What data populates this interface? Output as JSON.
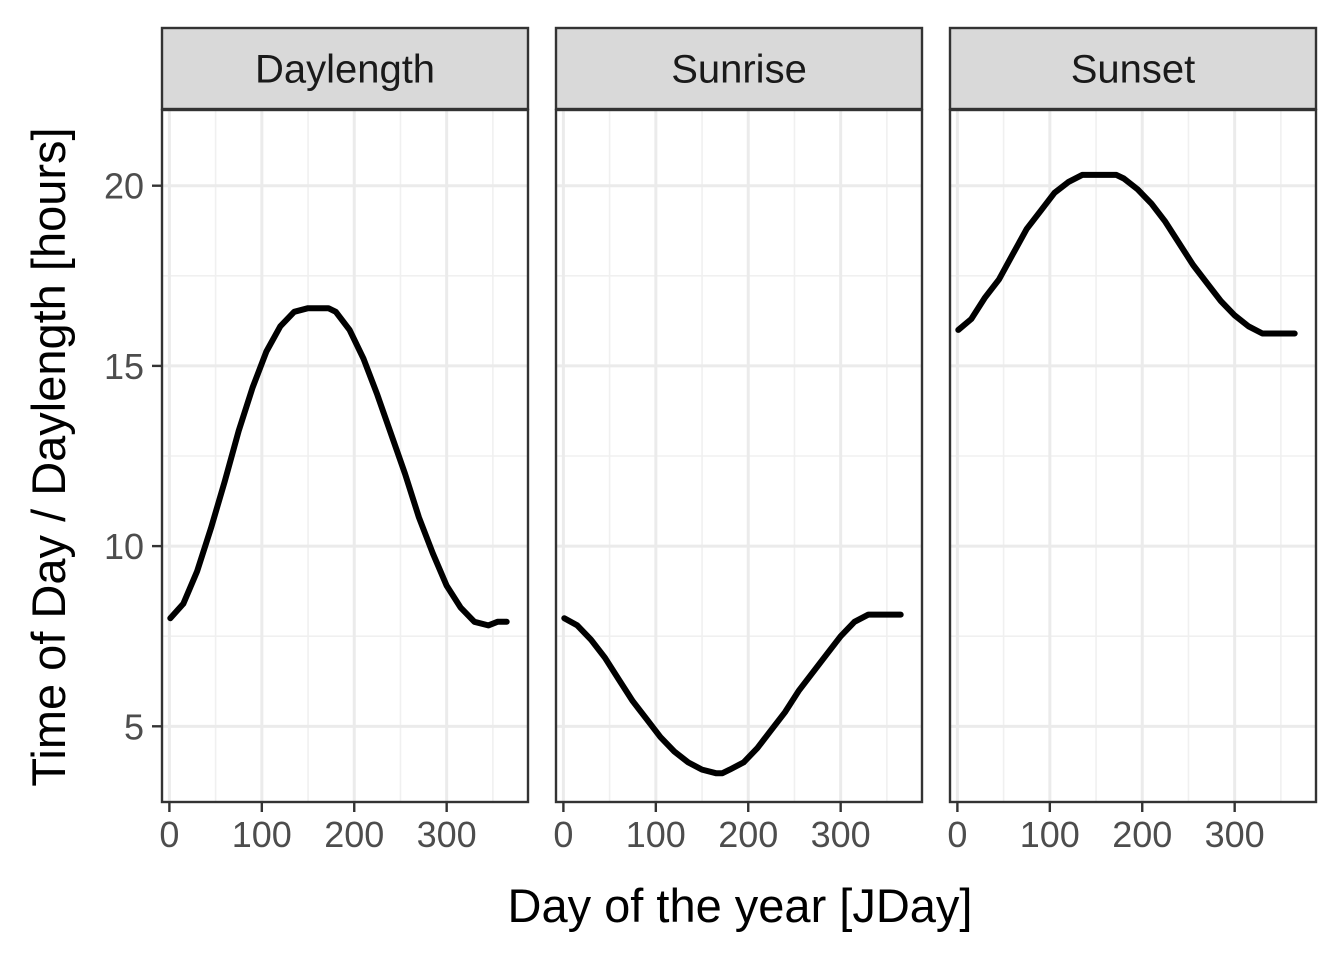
{
  "chart_data": {
    "type": "line",
    "xlabel": "Day of the year [JDay]",
    "ylabel": "Time of Day / Daylength [hours]",
    "xlim": [
      -8,
      388
    ],
    "ylim": [
      2.9,
      22.1
    ],
    "x_ticks": [
      0,
      100,
      200,
      300
    ],
    "y_ticks": [
      5,
      10,
      15,
      20
    ],
    "grid": true,
    "line_color": "#000000",
    "facets": [
      {
        "label": "Daylength",
        "x": [
          1,
          15,
          30,
          45,
          60,
          75,
          90,
          105,
          120,
          135,
          150,
          165,
          172,
          180,
          195,
          210,
          225,
          240,
          255,
          270,
          285,
          300,
          315,
          330,
          345,
          355,
          365
        ],
        "y": [
          8.0,
          8.4,
          9.3,
          10.5,
          11.8,
          13.2,
          14.4,
          15.4,
          16.1,
          16.5,
          16.6,
          16.6,
          16.6,
          16.5,
          16.0,
          15.2,
          14.2,
          13.1,
          12.0,
          10.8,
          9.8,
          8.9,
          8.3,
          7.9,
          7.8,
          7.9,
          7.9
        ]
      },
      {
        "label": "Sunrise",
        "x": [
          1,
          15,
          30,
          45,
          60,
          75,
          90,
          105,
          120,
          135,
          150,
          165,
          172,
          180,
          195,
          210,
          225,
          240,
          255,
          270,
          285,
          300,
          315,
          330,
          345,
          355,
          365
        ],
        "y": [
          8.0,
          7.8,
          7.4,
          6.9,
          6.3,
          5.7,
          5.2,
          4.7,
          4.3,
          4.0,
          3.8,
          3.7,
          3.7,
          3.8,
          4.0,
          4.4,
          4.9,
          5.4,
          6.0,
          6.5,
          7.0,
          7.5,
          7.9,
          8.1,
          8.1,
          8.1,
          8.1
        ]
      },
      {
        "label": "Sunset",
        "x": [
          1,
          15,
          30,
          45,
          60,
          75,
          90,
          105,
          120,
          135,
          150,
          165,
          172,
          180,
          195,
          210,
          225,
          240,
          255,
          270,
          285,
          300,
          315,
          330,
          345,
          355,
          365
        ],
        "y": [
          16.0,
          16.3,
          16.9,
          17.4,
          18.1,
          18.8,
          19.3,
          19.8,
          20.1,
          20.3,
          20.3,
          20.3,
          20.3,
          20.2,
          19.9,
          19.5,
          19.0,
          18.4,
          17.8,
          17.3,
          16.8,
          16.4,
          16.1,
          15.9,
          15.9,
          15.9,
          15.9
        ]
      }
    ]
  }
}
